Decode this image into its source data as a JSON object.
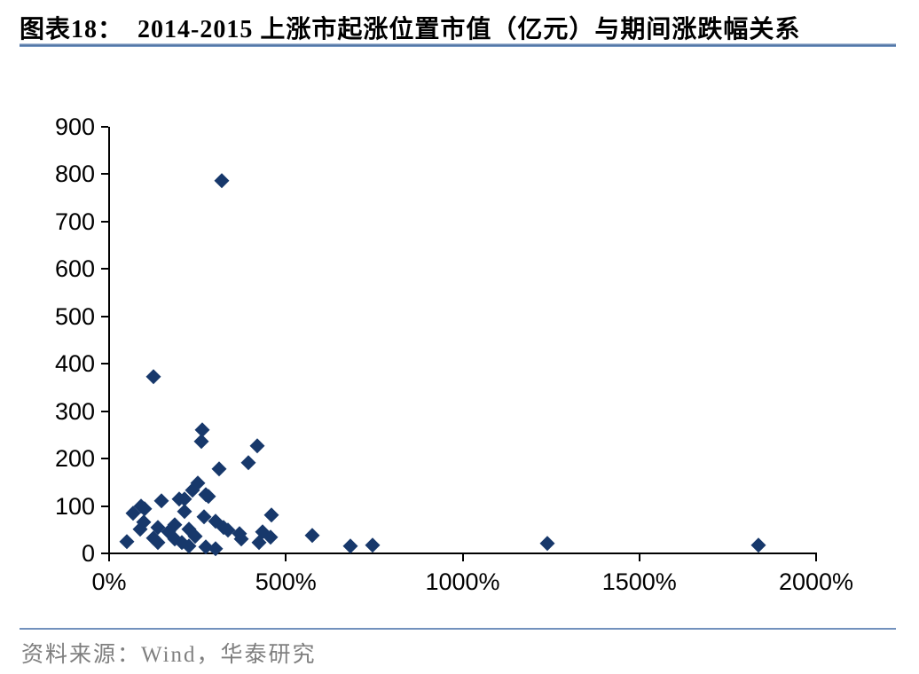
{
  "header": {
    "label": "图表18：",
    "title": "2014-2015 上涨市起涨位置市值（亿元）与期间涨跌幅关系"
  },
  "footer": {
    "source": "资料来源：Wind，华泰研究"
  },
  "colors": {
    "marker": "#17386b",
    "axis": "#000000",
    "title_rule": "#44689b",
    "footer_rule": "#7291bd",
    "source_text": "#7f7f7f"
  },
  "chart_data": {
    "type": "scatter",
    "title": "2014-2015 上涨市起涨位置市值（亿元）与期间涨跌幅关系",
    "xlabel": "期间涨跌幅",
    "ylabel": "起涨位置市值（亿元）",
    "x_unit": "%",
    "y_unit": "亿元",
    "xlim": [
      0,
      2000
    ],
    "ylim": [
      0,
      900
    ],
    "grid": false,
    "legend": "none",
    "x_ticks": [
      0,
      500,
      1000,
      1500,
      2000
    ],
    "x_tick_labels": [
      "0%",
      "500%",
      "1000%",
      "1500%",
      "2000%"
    ],
    "y_ticks": [
      0,
      100,
      200,
      300,
      400,
      500,
      600,
      700,
      800,
      900
    ],
    "marker": "diamond",
    "points": [
      [
        50,
        25
      ],
      [
        68,
        85
      ],
      [
        90,
        100
      ],
      [
        100,
        93
      ],
      [
        88,
        50
      ],
      [
        98,
        65
      ],
      [
        125,
        372
      ],
      [
        148,
        110
      ],
      [
        138,
        55
      ],
      [
        125,
        32
      ],
      [
        138,
        22
      ],
      [
        168,
        45
      ],
      [
        186,
        60
      ],
      [
        186,
        30
      ],
      [
        198,
        114
      ],
      [
        206,
        22
      ],
      [
        213,
        114
      ],
      [
        213,
        88
      ],
      [
        226,
        50
      ],
      [
        226,
        15
      ],
      [
        236,
        133
      ],
      [
        243,
        36
      ],
      [
        251,
        148
      ],
      [
        261,
        236
      ],
      [
        263,
        260
      ],
      [
        269,
        77
      ],
      [
        273,
        124
      ],
      [
        273,
        14
      ],
      [
        281,
        120
      ],
      [
        301,
        67
      ],
      [
        301,
        10
      ],
      [
        310,
        178
      ],
      [
        319,
        786
      ],
      [
        324,
        54
      ],
      [
        336,
        49
      ],
      [
        369,
        41
      ],
      [
        374,
        30
      ],
      [
        394,
        191
      ],
      [
        419,
        227
      ],
      [
        424,
        22
      ],
      [
        434,
        45
      ],
      [
        457,
        34
      ],
      [
        459,
        81
      ],
      [
        575,
        37
      ],
      [
        683,
        15
      ],
      [
        745,
        17
      ],
      [
        1240,
        20
      ],
      [
        1837,
        16
      ]
    ]
  }
}
